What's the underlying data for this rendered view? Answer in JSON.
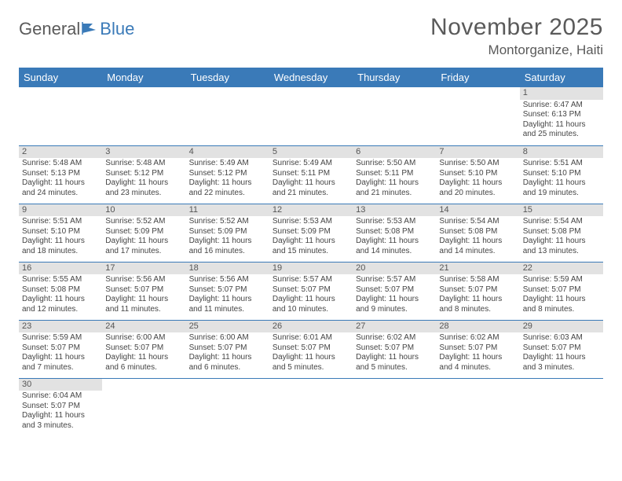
{
  "logo": {
    "text1": "General",
    "text2": "Blue"
  },
  "title": "November 2025",
  "location": "Montorganize, Haiti",
  "colors": {
    "header_bg": "#3a7ab8",
    "header_text": "#ffffff",
    "daynum_bg": "#e2e2e2",
    "border": "#3a7ab8",
    "text": "#444444",
    "title_text": "#5a5a5a"
  },
  "typography": {
    "title_fontsize": 30,
    "location_fontsize": 17,
    "header_fontsize": 13,
    "body_fontsize": 10
  },
  "weekdays": [
    "Sunday",
    "Monday",
    "Tuesday",
    "Wednesday",
    "Thursday",
    "Friday",
    "Saturday"
  ],
  "weeks": [
    [
      null,
      null,
      null,
      null,
      null,
      null,
      {
        "n": "1",
        "sr": "6:47 AM",
        "ss": "6:13 PM",
        "dl": "11 hours and 25 minutes."
      }
    ],
    [
      {
        "n": "2",
        "sr": "5:48 AM",
        "ss": "5:13 PM",
        "dl": "11 hours and 24 minutes."
      },
      {
        "n": "3",
        "sr": "5:48 AM",
        "ss": "5:12 PM",
        "dl": "11 hours and 23 minutes."
      },
      {
        "n": "4",
        "sr": "5:49 AM",
        "ss": "5:12 PM",
        "dl": "11 hours and 22 minutes."
      },
      {
        "n": "5",
        "sr": "5:49 AM",
        "ss": "5:11 PM",
        "dl": "11 hours and 21 minutes."
      },
      {
        "n": "6",
        "sr": "5:50 AM",
        "ss": "5:11 PM",
        "dl": "11 hours and 21 minutes."
      },
      {
        "n": "7",
        "sr": "5:50 AM",
        "ss": "5:10 PM",
        "dl": "11 hours and 20 minutes."
      },
      {
        "n": "8",
        "sr": "5:51 AM",
        "ss": "5:10 PM",
        "dl": "11 hours and 19 minutes."
      }
    ],
    [
      {
        "n": "9",
        "sr": "5:51 AM",
        "ss": "5:10 PM",
        "dl": "11 hours and 18 minutes."
      },
      {
        "n": "10",
        "sr": "5:52 AM",
        "ss": "5:09 PM",
        "dl": "11 hours and 17 minutes."
      },
      {
        "n": "11",
        "sr": "5:52 AM",
        "ss": "5:09 PM",
        "dl": "11 hours and 16 minutes."
      },
      {
        "n": "12",
        "sr": "5:53 AM",
        "ss": "5:09 PM",
        "dl": "11 hours and 15 minutes."
      },
      {
        "n": "13",
        "sr": "5:53 AM",
        "ss": "5:08 PM",
        "dl": "11 hours and 14 minutes."
      },
      {
        "n": "14",
        "sr": "5:54 AM",
        "ss": "5:08 PM",
        "dl": "11 hours and 14 minutes."
      },
      {
        "n": "15",
        "sr": "5:54 AM",
        "ss": "5:08 PM",
        "dl": "11 hours and 13 minutes."
      }
    ],
    [
      {
        "n": "16",
        "sr": "5:55 AM",
        "ss": "5:08 PM",
        "dl": "11 hours and 12 minutes."
      },
      {
        "n": "17",
        "sr": "5:56 AM",
        "ss": "5:07 PM",
        "dl": "11 hours and 11 minutes."
      },
      {
        "n": "18",
        "sr": "5:56 AM",
        "ss": "5:07 PM",
        "dl": "11 hours and 11 minutes."
      },
      {
        "n": "19",
        "sr": "5:57 AM",
        "ss": "5:07 PM",
        "dl": "11 hours and 10 minutes."
      },
      {
        "n": "20",
        "sr": "5:57 AM",
        "ss": "5:07 PM",
        "dl": "11 hours and 9 minutes."
      },
      {
        "n": "21",
        "sr": "5:58 AM",
        "ss": "5:07 PM",
        "dl": "11 hours and 8 minutes."
      },
      {
        "n": "22",
        "sr": "5:59 AM",
        "ss": "5:07 PM",
        "dl": "11 hours and 8 minutes."
      }
    ],
    [
      {
        "n": "23",
        "sr": "5:59 AM",
        "ss": "5:07 PM",
        "dl": "11 hours and 7 minutes."
      },
      {
        "n": "24",
        "sr": "6:00 AM",
        "ss": "5:07 PM",
        "dl": "11 hours and 6 minutes."
      },
      {
        "n": "25",
        "sr": "6:00 AM",
        "ss": "5:07 PM",
        "dl": "11 hours and 6 minutes."
      },
      {
        "n": "26",
        "sr": "6:01 AM",
        "ss": "5:07 PM",
        "dl": "11 hours and 5 minutes."
      },
      {
        "n": "27",
        "sr": "6:02 AM",
        "ss": "5:07 PM",
        "dl": "11 hours and 5 minutes."
      },
      {
        "n": "28",
        "sr": "6:02 AM",
        "ss": "5:07 PM",
        "dl": "11 hours and 4 minutes."
      },
      {
        "n": "29",
        "sr": "6:03 AM",
        "ss": "5:07 PM",
        "dl": "11 hours and 3 minutes."
      }
    ],
    [
      {
        "n": "30",
        "sr": "6:04 AM",
        "ss": "5:07 PM",
        "dl": "11 hours and 3 minutes."
      },
      null,
      null,
      null,
      null,
      null,
      null
    ]
  ],
  "labels": {
    "sunrise": "Sunrise:",
    "sunset": "Sunset:",
    "daylight": "Daylight:"
  }
}
